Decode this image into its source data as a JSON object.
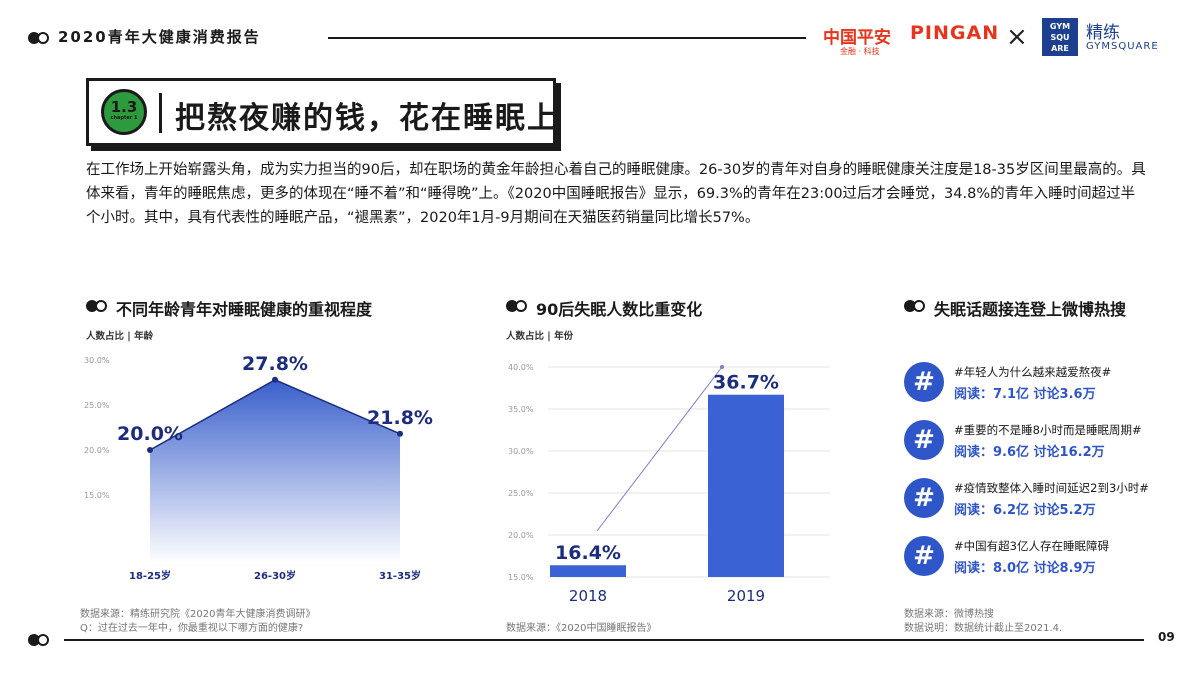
{
  "header": {
    "report_title": "2020青年大健康消费报告",
    "pingan_cn": "中国平安",
    "pingan_en": "PINGAN",
    "pingan_sub": "金融 · 科技",
    "times": "×",
    "gym_box": "GYM SQU ARE",
    "jinglian_cn": "精练",
    "jinglian_en": "GYMSQUARE"
  },
  "chapter": {
    "number": "1.3",
    "sub": "chapter 1",
    "title": "把熬夜赚的钱，花在睡眠上"
  },
  "intro": "在工作场上开始崭露头角，成为实力担当的90后，却在职场的黄金年龄担心着自己的睡眠健康。26-30岁的青年对自身的睡眠健康关注度是18-35岁区间里最高的。具体来看，青年的睡眠焦虑，更多的体现在“睡不着”和“睡得晚”上。《2020中国睡眠报告》显示，69.3%的青年在23:00过后才会睡觉，34.8%的青年入睡时间超过半个小时。其中，具有代表性的睡眠产品，“褪黑素”，2020年1月-9月期间在天猫医药销量同比增长57%。",
  "section1": {
    "title": "不同年龄青年对睡眠健康的重视程度",
    "unit": "人数占比 | 年龄",
    "source_line1": "数据来源：精练研究院《2020青年大健康消费调研》",
    "source_line2": "Q：过在过去一年中，你最重视以下哪方面的健康?"
  },
  "section2": {
    "title": "90后失眠人数比重变化",
    "unit": "人数占比 | 年份",
    "source_line1": "数据来源：《2020中国睡眠报告》"
  },
  "section3": {
    "title": "失眠话题接连登上微博热搜",
    "source_line1": "数据来源：微博热搜",
    "source_line2": "数据说明：数据统计截止至2021.4.",
    "topics": [
      {
        "tag": "#年轻人为什么越来越爱熬夜#",
        "stats": "阅读：7.1亿  讨论3.6万"
      },
      {
        "tag": "#重要的不是睡8小时而是睡眠周期#",
        "stats": "阅读：9.6亿  讨论16.2万"
      },
      {
        "tag": "#疫情致整体入睡时间延迟2到3小时#",
        "stats": "阅读：6.2亿  讨论5.2万"
      },
      {
        "tag": "#中国有超3亿人存在睡眠障碍",
        "stats": "阅读：8.0亿  讨论8.9万"
      }
    ],
    "icon_symbol": "#"
  },
  "footer": {
    "page": "09"
  },
  "colors": {
    "accent": "#2f56c8",
    "line": "#1c2d80",
    "pingan": "#e8341a",
    "badge": "#2e9a3e"
  },
  "chart_data": [
    {
      "type": "area",
      "title": "不同年龄青年对睡眠健康的重视程度",
      "ylabel": "人数占比",
      "xlabel": "年龄",
      "categories": [
        "18-25岁",
        "26-30岁",
        "31-35岁"
      ],
      "values": [
        20.0,
        27.8,
        21.8
      ],
      "value_labels": [
        "20.0%",
        "27.8%",
        "21.8%"
      ],
      "ylim": [
        15,
        30
      ],
      "yticks": [
        "30.0%",
        "25.0%",
        "20.0%",
        "15.0%"
      ],
      "grid": false
    },
    {
      "type": "bar",
      "title": "90后失眠人数比重变化",
      "ylabel": "人数占比",
      "xlabel": "年份",
      "categories": [
        "2018",
        "2019"
      ],
      "values": [
        16.4,
        36.7
      ],
      "value_labels": [
        "16.4%",
        "36.7%"
      ],
      "ylim": [
        15,
        40
      ],
      "yticks": [
        "40.0%",
        "35.0%",
        "30.0%",
        "25.0%",
        "20.0%",
        "15.0%"
      ],
      "grid": true
    }
  ]
}
